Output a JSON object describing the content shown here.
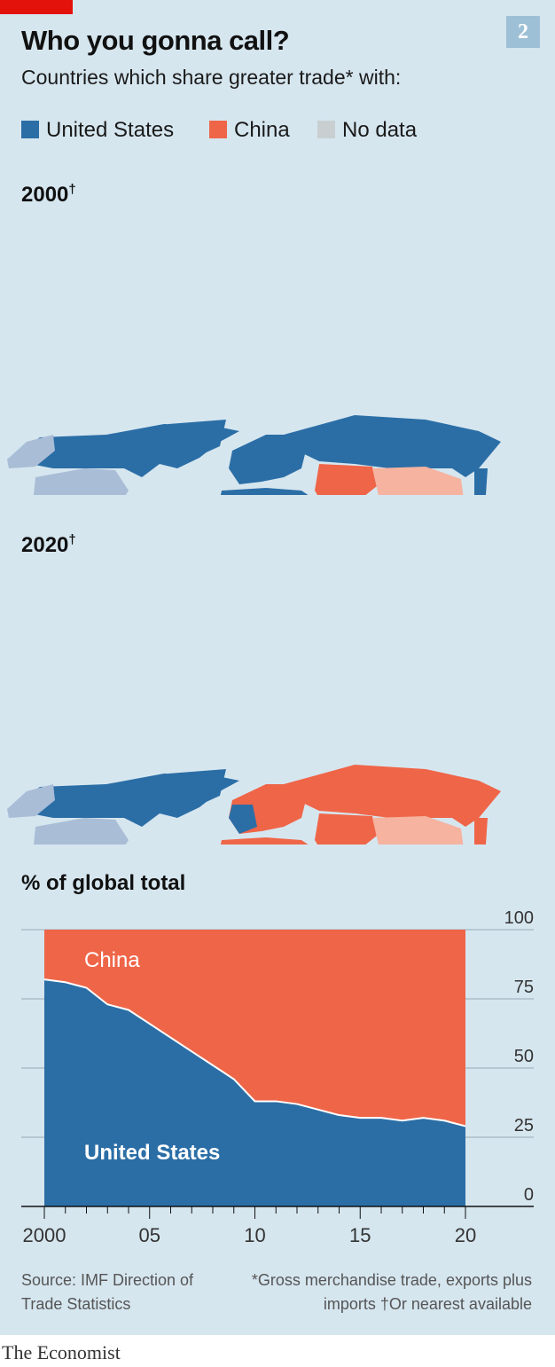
{
  "header": {
    "title": "Who you gonna call?",
    "subtitle": "Countries which share greater trade* with:",
    "chart_number": "2"
  },
  "legend": [
    {
      "label": "United States",
      "color": "#2b6ea6"
    },
    {
      "label": "China",
      "color": "#ef6548"
    },
    {
      "label": "No data",
      "color": "#c9cfd1"
    }
  ],
  "maps": [
    {
      "year": "2000",
      "mark": "†"
    },
    {
      "year": "2020",
      "mark": "†"
    }
  ],
  "chart_label": "% of global total",
  "colors": {
    "us": "#2b6ea6",
    "us_light": "#a9bdd6",
    "china": "#ef6548",
    "china_light": "#f5b3a0",
    "nodata": "#c9cfd1",
    "background": "#d6e6ef"
  },
  "chart_data": {
    "type": "area",
    "x": [
      2000,
      2001,
      2002,
      2003,
      2004,
      2005,
      2006,
      2007,
      2008,
      2009,
      2010,
      2011,
      2012,
      2013,
      2014,
      2015,
      2016,
      2017,
      2018,
      2019,
      2020
    ],
    "series": [
      {
        "name": "United States",
        "values": [
          82,
          81,
          79,
          73,
          71,
          66,
          61,
          56,
          51,
          46,
          38,
          38,
          37,
          35,
          33,
          32,
          32,
          31,
          32,
          31,
          29
        ]
      },
      {
        "name": "China",
        "values": [
          18,
          19,
          21,
          27,
          29,
          34,
          39,
          44,
          49,
          54,
          62,
          62,
          63,
          65,
          67,
          68,
          68,
          69,
          68,
          69,
          71
        ]
      }
    ],
    "ylim": [
      0,
      100
    ],
    "yticks": [
      "0",
      "25",
      "50",
      "75",
      "100"
    ],
    "xticks": [
      "2000",
      "05",
      "10",
      "15",
      "20"
    ],
    "grid": true,
    "stacked": true
  },
  "footer": {
    "source": "Source: IMF Direction of Trade Statistics",
    "note1": "*Gross merchandise trade, exports plus imports",
    "note2": "†Or nearest available",
    "brand": "The Economist"
  }
}
